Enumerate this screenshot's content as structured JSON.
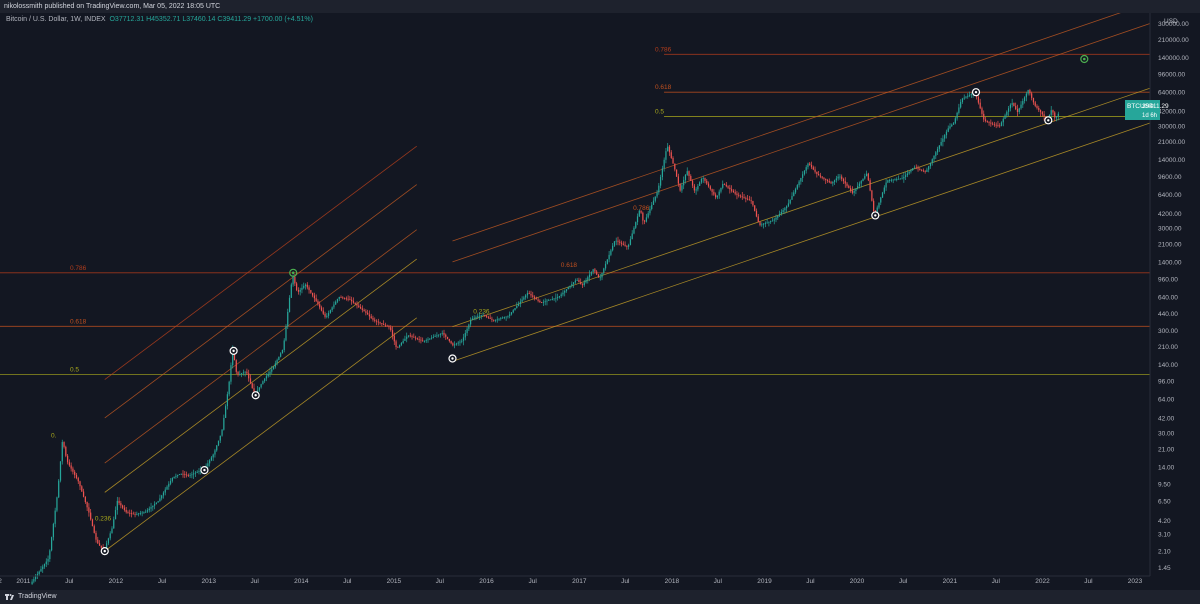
{
  "header": {
    "attribution": "nikolossmith published on TradingView.com, Mar 05, 2022 18:05 UTC"
  },
  "legend": {
    "symbol": "Bitcoin / U.S. Dollar, 1W, INDEX",
    "open": "O37712.31",
    "high": "H45352.71",
    "low": "L37460.14",
    "close": "C39411.29",
    "change": "+1700.00 (+4.51%)"
  },
  "footer": {
    "brand": "TradingView"
  },
  "price_tag": {
    "symbol": "BTCUSD",
    "price": "39411.29",
    "countdown": "1d 6h"
  },
  "colors": {
    "background": "#131722",
    "up": "#26a69a",
    "down": "#ef5350",
    "fib_786": "#b23d1c",
    "fib_618": "#c1501f",
    "fib_5": "#a8a81c",
    "fib_236": "#a8a81c",
    "channel": "#b7891f"
  },
  "chart_data": {
    "type": "candlestick",
    "title": "Bitcoin / U.S. Dollar, 1W, INDEX",
    "y_scale": "log",
    "y_unit": "USD",
    "ylim": [
      1.2,
      380000
    ],
    "xlim": [
      "2010-10-01",
      "2023-03-01"
    ],
    "x_ticks": [
      "2",
      "2011",
      "Jul",
      "2012",
      "Jul",
      "2013",
      "Jul",
      "2014",
      "Jul",
      "2015",
      "Jul",
      "2016",
      "Jul",
      "2017",
      "Jul",
      "2018",
      "Jul",
      "2019",
      "Jul",
      "2020",
      "Jul",
      "2021",
      "Jul",
      "2022",
      "Jul",
      "2023"
    ],
    "x_tick_dates": [
      "2010-10-01",
      "2011-01-01",
      "2011-07-01",
      "2012-01-01",
      "2012-07-01",
      "2013-01-01",
      "2013-07-01",
      "2014-01-01",
      "2014-07-01",
      "2015-01-01",
      "2015-07-01",
      "2016-01-01",
      "2016-07-01",
      "2017-01-01",
      "2017-07-01",
      "2018-01-01",
      "2018-07-01",
      "2019-01-01",
      "2019-07-01",
      "2020-01-01",
      "2020-07-01",
      "2021-01-01",
      "2021-07-01",
      "2022-01-01",
      "2022-07-01",
      "2023-01-01"
    ],
    "y_ticks": [
      "380000.00",
      "300000.00",
      "210000.00",
      "140000.00",
      "96000.00",
      "64000.00",
      "42000.00",
      "30000.00",
      "21000.00",
      "14000.00",
      "9600.00",
      "6400.00",
      "4200.00",
      "3000.00",
      "2100.00",
      "1400.00",
      "960.00",
      "640.00",
      "440.00",
      "300.00",
      "210.00",
      "140.00",
      "96.00",
      "64.00",
      "42.00",
      "30.00",
      "21.00",
      "14.00",
      "9.50",
      "6.50",
      "4.20",
      "3.10",
      "2.10",
      "1.45"
    ],
    "y_tick_values": [
      380000,
      300000,
      210000,
      140000,
      96000,
      64000,
      42000,
      30000,
      21000,
      14000,
      9600,
      6400,
      4200,
      3000,
      2100,
      1400,
      960,
      640,
      440,
      300,
      210,
      140,
      96,
      64,
      42,
      30,
      21,
      14,
      9.5,
      6.5,
      4.2,
      3.1,
      2.1,
      1.45
    ],
    "y_axis_unit_label": "USD",
    "price_path": [
      [
        "2011-02-01",
        1.0
      ],
      [
        "2011-04-15",
        1.8
      ],
      [
        "2011-05-20",
        8
      ],
      [
        "2011-06-08",
        26
      ],
      [
        "2011-06-25",
        16
      ],
      [
        "2011-08-10",
        10
      ],
      [
        "2011-09-20",
        5
      ],
      [
        "2011-10-20",
        2.6
      ],
      [
        "2011-11-18",
        2.1
      ],
      [
        "2011-12-20",
        3.5
      ],
      [
        "2012-01-10",
        6.5
      ],
      [
        "2012-02-15",
        5.0
      ],
      [
        "2012-03-20",
        4.8
      ],
      [
        "2012-05-01",
        5.1
      ],
      [
        "2012-06-20",
        6.5
      ],
      [
        "2012-08-15",
        11
      ],
      [
        "2012-09-15",
        12
      ],
      [
        "2012-10-20",
        11.5
      ],
      [
        "2012-12-20",
        13.5
      ],
      [
        "2013-01-25",
        19
      ],
      [
        "2013-02-25",
        31
      ],
      [
        "2013-03-25",
        90
      ],
      [
        "2013-04-09",
        200
      ],
      [
        "2013-04-25",
        110
      ],
      [
        "2013-06-01",
        120
      ],
      [
        "2013-07-05",
        70
      ],
      [
        "2013-08-10",
        100
      ],
      [
        "2013-09-15",
        130
      ],
      [
        "2013-10-25",
        200
      ],
      [
        "2013-11-18",
        600
      ],
      [
        "2013-12-01",
        1050
      ],
      [
        "2013-12-20",
        700
      ],
      [
        "2014-01-20",
        850
      ],
      [
        "2014-03-01",
        600
      ],
      [
        "2014-04-10",
        400
      ],
      [
        "2014-06-01",
        640
      ],
      [
        "2014-07-15",
        600
      ],
      [
        "2014-09-15",
        450
      ],
      [
        "2014-10-15",
        380
      ],
      [
        "2014-12-20",
        320
      ],
      [
        "2015-01-15",
        200
      ],
      [
        "2015-03-01",
        270
      ],
      [
        "2015-05-01",
        235
      ],
      [
        "2015-07-15",
        285
      ],
      [
        "2015-08-25",
        215
      ],
      [
        "2015-10-01",
        240
      ],
      [
        "2015-11-05",
        390
      ],
      [
        "2015-12-20",
        430
      ],
      [
        "2016-02-01",
        375
      ],
      [
        "2016-04-01",
        420
      ],
      [
        "2016-06-15",
        700
      ],
      [
        "2016-08-05",
        560
      ],
      [
        "2016-10-15",
        640
      ],
      [
        "2016-12-25",
        950
      ],
      [
        "2017-01-15",
        820
      ],
      [
        "2017-03-01",
        1200
      ],
      [
        "2017-03-25",
        950
      ],
      [
        "2017-05-25",
        2300
      ],
      [
        "2017-07-15",
        1950
      ],
      [
        "2017-09-01",
        4700
      ],
      [
        "2017-09-15",
        3300
      ],
      [
        "2017-11-10",
        7000
      ],
      [
        "2017-12-17",
        19500
      ],
      [
        "2018-01-15",
        11500
      ],
      [
        "2018-02-06",
        7000
      ],
      [
        "2018-03-05",
        11000
      ],
      [
        "2018-04-05",
        6800
      ],
      [
        "2018-05-05",
        9500
      ],
      [
        "2018-06-28",
        5900
      ],
      [
        "2018-07-25",
        8200
      ],
      [
        "2018-09-15",
        6400
      ],
      [
        "2018-11-15",
        5500
      ],
      [
        "2018-12-15",
        3200
      ],
      [
        "2019-02-10",
        3600
      ],
      [
        "2019-04-05",
        5000
      ],
      [
        "2019-05-15",
        8000
      ],
      [
        "2019-06-26",
        13000
      ],
      [
        "2019-08-01",
        10000
      ],
      [
        "2019-09-25",
        8200
      ],
      [
        "2019-10-26",
        9800
      ],
      [
        "2019-12-18",
        6600
      ],
      [
        "2020-02-13",
        10400
      ],
      [
        "2020-03-13",
        4000
      ],
      [
        "2020-05-01",
        8800
      ],
      [
        "2020-07-01",
        9200
      ],
      [
        "2020-08-15",
        11800
      ],
      [
        "2020-10-01",
        10600
      ],
      [
        "2020-11-20",
        18500
      ],
      [
        "2020-12-31",
        29000
      ],
      [
        "2021-01-20",
        32000
      ],
      [
        "2021-02-20",
        55000
      ],
      [
        "2021-04-14",
        64000
      ],
      [
        "2021-05-19",
        34000
      ],
      [
        "2021-06-22",
        31000
      ],
      [
        "2021-07-20",
        30000
      ],
      [
        "2021-09-05",
        51000
      ],
      [
        "2021-09-28",
        41000
      ],
      [
        "2021-11-10",
        68000
      ],
      [
        "2021-12-04",
        48000
      ],
      [
        "2022-01-24",
        34000
      ],
      [
        "2022-02-10",
        44000
      ],
      [
        "2022-02-24",
        35000
      ],
      [
        "2022-03-05",
        39411
      ]
    ],
    "fibonacci_levels": [
      {
        "label": "0.786",
        "value": 1100,
        "x_start": "2010-10-01",
        "x_end": "2023-03-01"
      },
      {
        "label": "0.618",
        "value": 330,
        "x_start": "2010-10-01",
        "x_end": "2023-03-01"
      },
      {
        "label": "0.5",
        "value": 112,
        "x_start": "2010-10-01",
        "x_end": "2023-03-01"
      },
      {
        "label": "0.786",
        "value": 150000,
        "x_start": "2017-12-01",
        "x_end": "2023-03-01"
      },
      {
        "label": "0.618",
        "value": 64000,
        "x_start": "2017-12-01",
        "x_end": "2023-03-01"
      },
      {
        "label": "0.5",
        "value": 37000,
        "x_start": "2017-12-01",
        "x_end": "2023-03-01"
      }
    ],
    "fibonacci_channel_labels": [
      {
        "label": "0.236",
        "x": "2011-10-10",
        "value": 4.2
      },
      {
        "label": "0.",
        "x": "2011-04-20",
        "value": 27
      },
      {
        "label": "0.236",
        "x": "2015-11-10",
        "value": 440
      },
      {
        "label": "0.618",
        "x": "2016-10-20",
        "value": 1250
      },
      {
        "label": "0.786",
        "x": "2017-08-01",
        "value": 4500
      }
    ],
    "channels": [
      {
        "name": "early",
        "x_start": "2011-11-18",
        "v_start": 2.1,
        "x_end": "2015-04-01",
        "v_ends": [
          400,
          1500,
          2900,
          8000,
          19000
        ]
      },
      {
        "name": "late",
        "x_start": "2015-08-20",
        "v_start": 150,
        "x_end": "2023-03-01",
        "v_ends": [
          32000,
          70000,
          300000,
          480000
        ]
      }
    ],
    "markers": [
      {
        "x": "2011-11-18",
        "value": 2.1,
        "kind": "circle"
      },
      {
        "x": "2012-12-15",
        "value": 13,
        "kind": "circle"
      },
      {
        "x": "2013-04-09",
        "value": 190,
        "kind": "circle"
      },
      {
        "x": "2013-07-05",
        "value": 70,
        "kind": "circle"
      },
      {
        "x": "2013-11-30",
        "value": 1100,
        "kind": "target"
      },
      {
        "x": "2015-08-20",
        "value": 160,
        "kind": "circle"
      },
      {
        "x": "2020-03-13",
        "value": 4000,
        "kind": "circle"
      },
      {
        "x": "2021-04-14",
        "value": 64000,
        "kind": "circle"
      },
      {
        "x": "2022-01-24",
        "value": 34000,
        "kind": "circle"
      },
      {
        "x": "2022-06-15",
        "value": 135000,
        "kind": "target"
      }
    ]
  }
}
